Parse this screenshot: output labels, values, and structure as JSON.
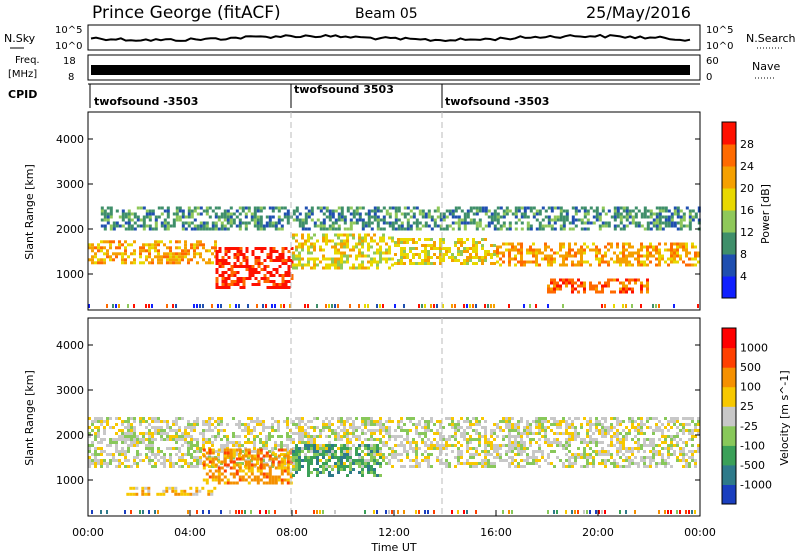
{
  "header": {
    "title": "Prince George (fitACF)",
    "beam": "Beam 05",
    "date": "25/May/2016"
  },
  "top_panels": {
    "nsky": {
      "left_label": "N.Sky",
      "right_label": "N.Search",
      "left_ticks": [
        "10^5",
        "10^0"
      ],
      "right_ticks": [
        "10^5",
        "10^0"
      ]
    },
    "freq": {
      "left_label_1": "Freq.",
      "left_label_2": "[MHz]",
      "left_ticks": [
        "18",
        "8"
      ],
      "right_label": "Nave",
      "right_ticks": [
        "60",
        "0"
      ]
    },
    "cpid": {
      "label": "CPID",
      "segments": [
        {
          "label": "twofsound -3503",
          "start_hour": 0,
          "end_hour": 8
        },
        {
          "label": "twofsound 3503",
          "start_hour": 8,
          "end_hour": 14
        },
        {
          "label": "twofsound -3503",
          "start_hour": 14,
          "end_hour": 24
        }
      ]
    }
  },
  "chart_data": [
    {
      "type": "heatmap",
      "name": "power",
      "ylabel": "Slant Range [km]",
      "yticks": [
        1000,
        2000,
        3000,
        4000
      ],
      "ylim": [
        200,
        4600
      ],
      "xlim": [
        0,
        24
      ],
      "colorbar_label": "Power [dB]",
      "colorbar_ticks": [
        "4",
        "8",
        "12",
        "16",
        "20",
        "24",
        "28"
      ],
      "colorbar_colors": [
        "#1020ff",
        "#1f4fb0",
        "#3f8f6a",
        "#8fc85a",
        "#e8d800",
        "#f5a000",
        "#ff6a00",
        "#ff1000"
      ],
      "layers": [
        {
          "h0": 0.0,
          "h1": 5.0,
          "r0": 1250,
          "r1": 1750,
          "level": 5
        },
        {
          "h0": 5.0,
          "h1": 8.0,
          "r0": 700,
          "r1": 1600,
          "level": 7
        },
        {
          "h0": 8.0,
          "h1": 12.0,
          "r0": 1100,
          "r1": 1900,
          "level": 4
        },
        {
          "h0": 12.0,
          "h1": 16.0,
          "r0": 1200,
          "r1": 1800,
          "level": 4
        },
        {
          "h0": 16.0,
          "h1": 24.0,
          "r0": 1200,
          "r1": 1700,
          "level": 5
        },
        {
          "h0": 0.5,
          "h1": 24.0,
          "r0": 2000,
          "r1": 2500,
          "level": 2
        },
        {
          "h0": 18.0,
          "h1": 22.0,
          "r0": 600,
          "r1": 900,
          "level": 6
        }
      ]
    },
    {
      "type": "heatmap",
      "name": "velocity",
      "ylabel": "Slant Range [km]",
      "yticks": [
        1000,
        2000,
        3000,
        4000
      ],
      "ylim": [
        200,
        4600
      ],
      "xlim": [
        0,
        24
      ],
      "xlabel": "Time UT",
      "xticks": [
        "00:00",
        "04:00",
        "08:00",
        "12:00",
        "16:00",
        "20:00",
        "00:00"
      ],
      "colorbar_label": "Velocity [m s^-1]",
      "colorbar_ticks": [
        "1000",
        "500",
        "100",
        "25",
        "-25",
        "-100",
        "-500",
        "-1000"
      ],
      "colorbar_colors": [
        "#1a3fbf",
        "#2e7a8a",
        "#3aa058",
        "#88c85a",
        "#c8c8c8",
        "#f7c800",
        "#f59000",
        "#ff4000",
        "#ff0000"
      ],
      "layers": [
        {
          "h0": 0.0,
          "h1": 24.0,
          "r0": 1300,
          "r1": 2400,
          "level": 4
        },
        {
          "h0": 4.5,
          "h1": 8.0,
          "r0": 900,
          "r1": 1700,
          "level": 6
        },
        {
          "h0": 8.0,
          "h1": 11.5,
          "r0": 1100,
          "r1": 1800,
          "level": 2
        },
        {
          "h0": 1.5,
          "h1": 5.0,
          "r0": 650,
          "r1": 850,
          "level": 5
        }
      ]
    }
  ]
}
